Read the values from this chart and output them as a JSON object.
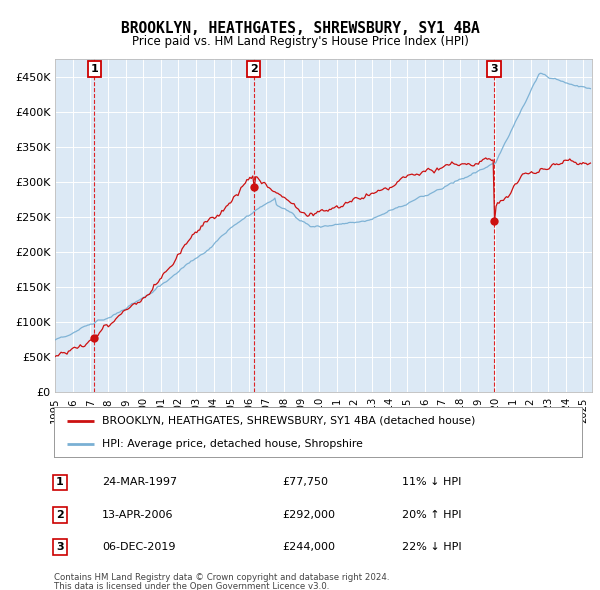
{
  "title": "BROOKLYN, HEATHGATES, SHREWSBURY, SY1 4BA",
  "subtitle": "Price paid vs. HM Land Registry's House Price Index (HPI)",
  "background_color": "#dce9f5",
  "plot_bg_color": "#dce9f5",
  "legend_label_red": "BROOKLYN, HEATHGATES, SHREWSBURY, SY1 4BA (detached house)",
  "legend_label_blue": "HPI: Average price, detached house, Shropshire",
  "footer1": "Contains HM Land Registry data © Crown copyright and database right 2024.",
  "footer2": "This data is licensed under the Open Government Licence v3.0.",
  "transactions": [
    {
      "num": 1,
      "date": "24-MAR-1997",
      "price": 77750,
      "pct": "11%",
      "dir": "↓",
      "year_x": 1997.22
    },
    {
      "num": 2,
      "date": "13-APR-2006",
      "price": 292000,
      "pct": "20%",
      "dir": "↑",
      "year_x": 2006.28
    },
    {
      "num": 3,
      "date": "06-DEC-2019",
      "price": 244000,
      "pct": "22%",
      "dir": "↓",
      "year_x": 2019.92
    }
  ],
  "ylim": [
    0,
    475000
  ],
  "xlim_start": 1995.0,
  "xlim_end": 2025.5,
  "hpi_color": "#7ab0d4",
  "price_color": "#cc1111",
  "yticks": [
    0,
    50000,
    100000,
    150000,
    200000,
    250000,
    300000,
    350000,
    400000,
    450000
  ],
  "ytick_labels": [
    "£0",
    "£50K",
    "£100K",
    "£150K",
    "£200K",
    "£250K",
    "£300K",
    "£350K",
    "£400K",
    "£450K"
  ]
}
